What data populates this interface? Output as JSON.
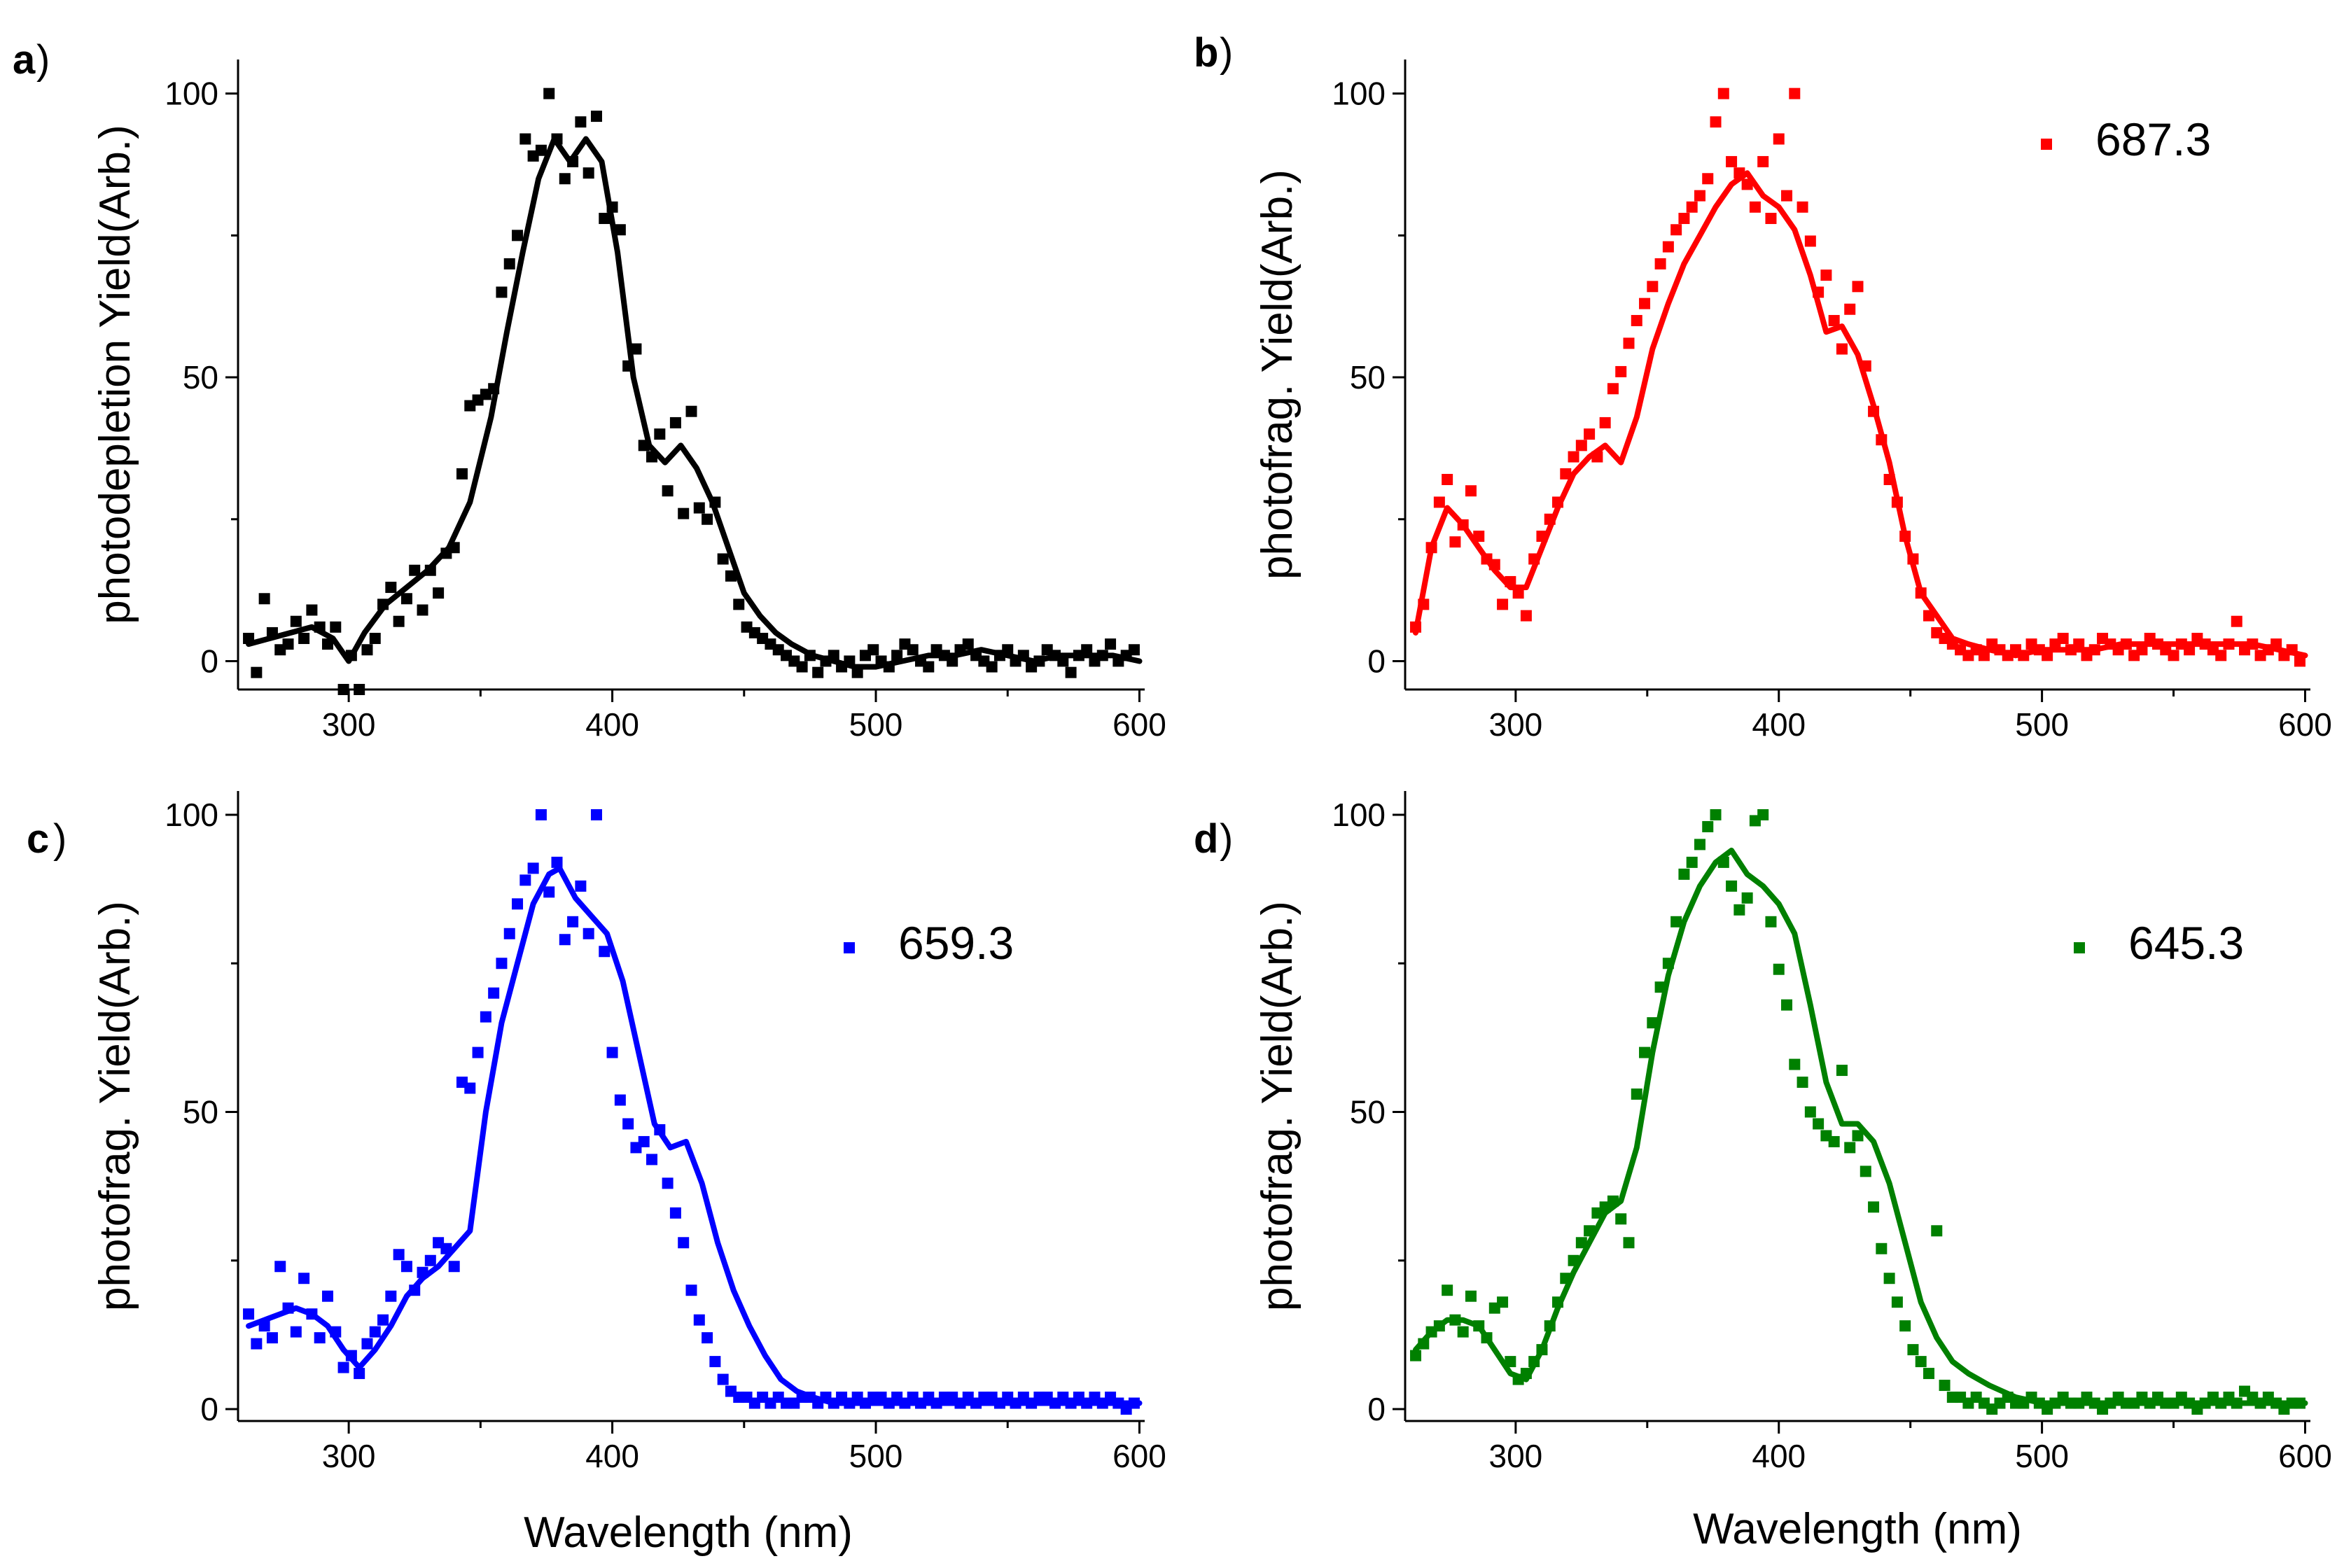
{
  "chart_data": [
    {
      "type": "scatter+line",
      "panel_letter": "a",
      "ylabel": "photodepletion Yield(Arb.)",
      "xlabel": "",
      "xlim": [
        258,
        602
      ],
      "ylim": [
        -5,
        106
      ],
      "xticks": [
        "300",
        "400",
        "500",
        "600"
      ],
      "yticks": [
        "0",
        "50",
        "100"
      ],
      "color": "#000000",
      "legend": "",
      "points_x": [
        262,
        265,
        268,
        271,
        274,
        277,
        280,
        283,
        286,
        289,
        292,
        295,
        298,
        301,
        304,
        307,
        310,
        313,
        316,
        319,
        322,
        325,
        328,
        331,
        334,
        337,
        340,
        343,
        346,
        349,
        352,
        355,
        358,
        361,
        364,
        367,
        370,
        373,
        376,
        379,
        382,
        385,
        388,
        391,
        394,
        397,
        400,
        403,
        406,
        409,
        412,
        415,
        418,
        421,
        424,
        427,
        430,
        433,
        436,
        439,
        442,
        445,
        448,
        451,
        454,
        457,
        460,
        463,
        466,
        469,
        472,
        475,
        478,
        481,
        484,
        487,
        490,
        493,
        496,
        499,
        502,
        505,
        508,
        511,
        514,
        517,
        520,
        523,
        526,
        529,
        532,
        535,
        538,
        541,
        544,
        547,
        550,
        553,
        556,
        559,
        562,
        565,
        568,
        571,
        574,
        577,
        580,
        583,
        586,
        589,
        592,
        595,
        598
      ],
      "points_y": [
        4,
        -2,
        11,
        5,
        2,
        3,
        7,
        4,
        9,
        6,
        3,
        6,
        -5,
        1,
        -5,
        2,
        4,
        10,
        13,
        7,
        11,
        16,
        9,
        16,
        12,
        19,
        20,
        33,
        45,
        46,
        47,
        48,
        65,
        70,
        75,
        92,
        89,
        90,
        100,
        92,
        85,
        88,
        95,
        86,
        96,
        78,
        80,
        76,
        52,
        55,
        38,
        36,
        40,
        30,
        42,
        26,
        44,
        27,
        25,
        28,
        18,
        15,
        10,
        6,
        5,
        4,
        3,
        2,
        1,
        0,
        -1,
        1,
        -2,
        0,
        1,
        -1,
        0,
        -2,
        1,
        2,
        0,
        -1,
        1,
        3,
        2,
        0,
        -1,
        2,
        1,
        0,
        2,
        3,
        1,
        0,
        -1,
        1,
        2,
        0,
        1,
        -1,
        0,
        2,
        1,
        0,
        -2,
        1,
        2,
        0,
        1,
        3,
        0,
        1,
        2
      ],
      "curve_x": [
        262,
        270,
        278,
        286,
        294,
        300,
        306,
        314,
        322,
        330,
        338,
        346,
        354,
        360,
        366,
        372,
        378,
        384,
        390,
        396,
        402,
        408,
        414,
        420,
        426,
        432,
        438,
        444,
        450,
        456,
        462,
        468,
        476,
        484,
        492,
        500,
        510,
        520,
        530,
        540,
        550,
        560,
        570,
        580,
        590,
        600
      ],
      "curve_y": [
        3,
        4,
        5,
        6,
        4,
        0,
        5,
        10,
        13,
        16,
        20,
        28,
        43,
        58,
        72,
        85,
        92,
        88,
        92,
        88,
        72,
        50,
        38,
        35,
        38,
        34,
        28,
        20,
        12,
        8,
        5,
        3,
        1,
        0,
        -1,
        -1,
        0,
        1,
        1,
        2,
        1,
        0,
        1,
        1,
        1,
        0
      ]
    },
    {
      "type": "scatter+line",
      "panel_letter": "b",
      "ylabel": "photofrag. Yield(Arb.)",
      "xlabel": "",
      "xlim": [
        258,
        602
      ],
      "ylim": [
        -5,
        106
      ],
      "xticks": [
        "300",
        "400",
        "500",
        "600"
      ],
      "yticks": [
        "0",
        "50",
        "100"
      ],
      "color": "#ff0000",
      "legend": "687.3",
      "points_x": [
        262,
        265,
        268,
        271,
        274,
        277,
        280,
        283,
        286,
        289,
        292,
        295,
        298,
        301,
        304,
        307,
        310,
        313,
        316,
        319,
        322,
        325,
        328,
        331,
        334,
        337,
        340,
        343,
        346,
        349,
        352,
        355,
        358,
        361,
        364,
        367,
        370,
        373,
        376,
        379,
        382,
        385,
        388,
        391,
        394,
        397,
        400,
        403,
        406,
        409,
        412,
        415,
        418,
        421,
        424,
        427,
        430,
        433,
        436,
        439,
        442,
        445,
        448,
        451,
        454,
        457,
        460,
        463,
        466,
        469,
        472,
        475,
        478,
        481,
        484,
        487,
        490,
        493,
        496,
        499,
        502,
        505,
        508,
        511,
        514,
        517,
        520,
        523,
        526,
        529,
        532,
        535,
        538,
        541,
        544,
        547,
        550,
        553,
        556,
        559,
        562,
        565,
        568,
        571,
        574,
        577,
        580,
        583,
        586,
        589,
        592,
        595,
        598
      ],
      "points_y": [
        6,
        10,
        20,
        28,
        32,
        21,
        24,
        30,
        22,
        18,
        17,
        10,
        14,
        12,
        8,
        18,
        22,
        25,
        28,
        33,
        36,
        38,
        40,
        36,
        42,
        48,
        51,
        56,
        60,
        63,
        66,
        70,
        73,
        76,
        78,
        80,
        82,
        85,
        95,
        100,
        88,
        86,
        84,
        80,
        88,
        78,
        92,
        82,
        100,
        80,
        74,
        65,
        68,
        60,
        55,
        62,
        66,
        52,
        44,
        39,
        32,
        28,
        22,
        18,
        12,
        8,
        5,
        4,
        3,
        2,
        1,
        2,
        1,
        3,
        2,
        1,
        2,
        1,
        3,
        2,
        1,
        3,
        4,
        2,
        3,
        1,
        2,
        4,
        3,
        2,
        3,
        1,
        2,
        4,
        3,
        2,
        1,
        3,
        2,
        4,
        3,
        2,
        1,
        3,
        7,
        2,
        3,
        1,
        2,
        3,
        1,
        2,
        0
      ],
      "curve_x": [
        262,
        268,
        274,
        280,
        286,
        292,
        298,
        304,
        310,
        316,
        322,
        328,
        334,
        340,
        346,
        352,
        358,
        364,
        370,
        376,
        382,
        388,
        394,
        400,
        406,
        412,
        418,
        424,
        430,
        436,
        442,
        448,
        454,
        460,
        466,
        472,
        480,
        490,
        500,
        510,
        520,
        530,
        540,
        550,
        560,
        570,
        580,
        590,
        600
      ],
      "curve_y": [
        5,
        20,
        27,
        24,
        20,
        16,
        13,
        13,
        20,
        27,
        33,
        36,
        38,
        35,
        43,
        55,
        63,
        70,
        75,
        80,
        84,
        86,
        82,
        80,
        76,
        68,
        58,
        59,
        54,
        45,
        35,
        22,
        12,
        8,
        4,
        3,
        2,
        1,
        2,
        2,
        2,
        3,
        3,
        3,
        3,
        3,
        3,
        2,
        1
      ]
    },
    {
      "type": "scatter+line",
      "panel_letter": "c",
      "ylabel": "photofrag. Yield(Arb.)",
      "xlabel": "",
      "xlim": [
        258,
        602
      ],
      "ylim": [
        -2,
        104
      ],
      "xticks": [
        "300",
        "400",
        "500",
        "600"
      ],
      "yticks": [
        "0",
        "50",
        "100"
      ],
      "color": "#0000ff",
      "legend": "659.3",
      "points_x": [
        262,
        265,
        268,
        271,
        274,
        277,
        280,
        283,
        286,
        289,
        292,
        295,
        298,
        301,
        304,
        307,
        310,
        313,
        316,
        319,
        322,
        325,
        328,
        331,
        334,
        337,
        340,
        343,
        346,
        349,
        352,
        355,
        358,
        361,
        364,
        367,
        370,
        373,
        376,
        379,
        382,
        385,
        388,
        391,
        394,
        397,
        400,
        403,
        406,
        409,
        412,
        415,
        418,
        421,
        424,
        427,
        430,
        433,
        436,
        439,
        442,
        445,
        448,
        451,
        454,
        457,
        460,
        463,
        466,
        469,
        472,
        475,
        478,
        481,
        484,
        487,
        490,
        493,
        496,
        499,
        502,
        505,
        508,
        511,
        514,
        517,
        520,
        523,
        526,
        529,
        532,
        535,
        538,
        541,
        544,
        547,
        550,
        553,
        556,
        559,
        562,
        565,
        568,
        571,
        574,
        577,
        580,
        583,
        586,
        589,
        592,
        595,
        598
      ],
      "points_y": [
        16,
        11,
        14,
        12,
        24,
        17,
        13,
        22,
        16,
        12,
        19,
        13,
        7,
        9,
        6,
        11,
        13,
        15,
        19,
        26,
        24,
        20,
        23,
        25,
        28,
        27,
        24,
        55,
        54,
        60,
        66,
        70,
        75,
        80,
        85,
        89,
        91,
        100,
        87,
        92,
        79,
        82,
        88,
        80,
        100,
        77,
        60,
        52,
        48,
        44,
        45,
        42,
        47,
        38,
        33,
        28,
        20,
        15,
        12,
        8,
        5,
        3,
        2,
        2,
        1,
        2,
        1,
        2,
        1,
        1,
        2,
        2,
        1,
        2,
        1,
        2,
        1,
        2,
        1,
        2,
        2,
        1,
        2,
        1,
        2,
        1,
        2,
        1,
        2,
        2,
        1,
        2,
        1,
        2,
        2,
        1,
        2,
        1,
        2,
        1,
        2,
        2,
        1,
        2,
        1,
        2,
        1,
        2,
        1,
        2,
        1,
        0,
        1
      ],
      "curve_x": [
        262,
        268,
        274,
        280,
        286,
        292,
        298,
        304,
        310,
        316,
        322,
        328,
        334,
        340,
        346,
        352,
        358,
        364,
        370,
        376,
        380,
        386,
        392,
        398,
        404,
        410,
        416,
        422,
        428,
        434,
        440,
        446,
        452,
        458,
        464,
        470,
        476,
        484,
        492,
        500,
        510,
        520,
        530,
        540,
        550,
        560,
        570,
        580,
        590,
        600
      ],
      "curve_y": [
        14,
        15,
        16,
        17,
        16,
        14,
        10,
        7,
        10,
        14,
        19,
        22,
        24,
        27,
        30,
        50,
        65,
        75,
        85,
        90,
        91,
        86,
        83,
        80,
        72,
        60,
        48,
        44,
        45,
        38,
        28,
        20,
        14,
        9,
        5,
        3,
        2,
        1,
        1,
        1,
        1,
        1,
        1,
        1,
        1,
        1,
        1,
        1,
        1,
        1
      ]
    },
    {
      "type": "scatter+line",
      "panel_letter": "d",
      "ylabel": "photofrag. Yield(Arb.)",
      "xlabel": "",
      "xlim": [
        258,
        602
      ],
      "ylim": [
        -2,
        104
      ],
      "xticks": [
        "300",
        "400",
        "500",
        "600"
      ],
      "yticks": [
        "0",
        "50",
        "100"
      ],
      "color": "#008000",
      "legend": "645.3",
      "points_x": [
        262,
        265,
        268,
        271,
        274,
        277,
        280,
        283,
        286,
        289,
        292,
        295,
        298,
        301,
        304,
        307,
        310,
        313,
        316,
        319,
        322,
        325,
        328,
        331,
        334,
        337,
        340,
        343,
        346,
        349,
        352,
        355,
        358,
        361,
        364,
        367,
        370,
        373,
        376,
        379,
        382,
        385,
        388,
        391,
        394,
        397,
        400,
        403,
        406,
        409,
        412,
        415,
        418,
        421,
        424,
        427,
        430,
        433,
        436,
        439,
        442,
        445,
        448,
        451,
        454,
        457,
        460,
        463,
        466,
        469,
        472,
        475,
        478,
        481,
        484,
        487,
        490,
        493,
        496,
        499,
        502,
        505,
        508,
        511,
        514,
        517,
        520,
        523,
        526,
        529,
        532,
        535,
        538,
        541,
        544,
        547,
        550,
        553,
        556,
        559,
        562,
        565,
        568,
        571,
        574,
        577,
        580,
        583,
        586,
        589,
        592,
        595,
        598
      ],
      "points_y": [
        9,
        11,
        13,
        14,
        20,
        15,
        13,
        19,
        14,
        12,
        17,
        18,
        8,
        5,
        6,
        8,
        10,
        14,
        18,
        22,
        25,
        28,
        30,
        33,
        34,
        35,
        32,
        28,
        53,
        60,
        65,
        71,
        75,
        82,
        90,
        92,
        95,
        98,
        100,
        92,
        88,
        84,
        86,
        99,
        100,
        82,
        74,
        68,
        58,
        55,
        50,
        48,
        46,
        45,
        57,
        44,
        46,
        40,
        34,
        27,
        22,
        18,
        14,
        10,
        8,
        6,
        30,
        4,
        2,
        2,
        1,
        2,
        1,
        0,
        1,
        2,
        1,
        1,
        2,
        1,
        0,
        1,
        2,
        1,
        1,
        2,
        1,
        0,
        1,
        2,
        1,
        1,
        2,
        1,
        2,
        1,
        1,
        2,
        1,
        0,
        1,
        2,
        1,
        2,
        1,
        3,
        2,
        1,
        2,
        1,
        0,
        1,
        1
      ],
      "curve_x": [
        262,
        268,
        274,
        280,
        286,
        292,
        298,
        304,
        310,
        316,
        322,
        328,
        334,
        340,
        346,
        352,
        358,
        364,
        370,
        376,
        382,
        388,
        394,
        400,
        406,
        412,
        418,
        424,
        430,
        436,
        442,
        448,
        454,
        460,
        466,
        472,
        480,
        490,
        500,
        510,
        520,
        530,
        540,
        550,
        560,
        570,
        580,
        590,
        600
      ],
      "curve_y": [
        10,
        13,
        15,
        15,
        14,
        10,
        6,
        5,
        10,
        17,
        23,
        28,
        33,
        35,
        44,
        60,
        73,
        82,
        88,
        92,
        94,
        90,
        88,
        85,
        80,
        68,
        55,
        48,
        48,
        45,
        38,
        28,
        18,
        12,
        8,
        6,
        4,
        2,
        1,
        1,
        1,
        1,
        1,
        1,
        1,
        1,
        1,
        1,
        1
      ]
    }
  ],
  "shared_xlabel": "Wavelength (nm)"
}
